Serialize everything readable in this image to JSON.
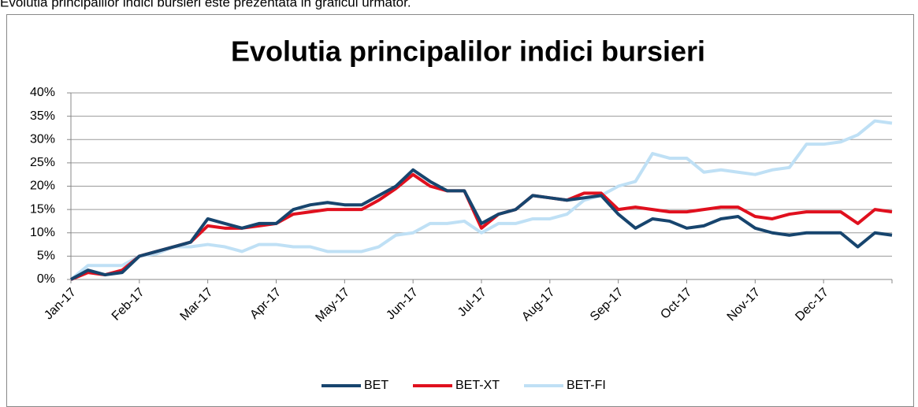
{
  "caption": "Evolutia principalilor indici bursieri este prezentata in graficul urmator.",
  "chart_data": {
    "type": "line",
    "title": "Evolutia principalilor indici bursieri",
    "categories": [
      "Jan-17",
      null,
      null,
      null,
      "Feb-17",
      null,
      null,
      null,
      "Mar-17",
      null,
      null,
      null,
      "Apr-17",
      null,
      null,
      null,
      "May-17",
      null,
      null,
      null,
      "Jun-17",
      null,
      null,
      null,
      "Jul-17",
      null,
      null,
      null,
      "Aug-17",
      null,
      null,
      null,
      "Sep-17",
      null,
      null,
      null,
      "Oct-17",
      null,
      null,
      null,
      "Nov-17",
      null,
      null,
      null,
      "Dec-17",
      null,
      null,
      null,
      null
    ],
    "series": [
      {
        "name": "BET",
        "color": "#17456e",
        "values": [
          0,
          2,
          1,
          1.5,
          5,
          6,
          7,
          8,
          13,
          12,
          11,
          12,
          12,
          15,
          16,
          16.5,
          16,
          16,
          18,
          20,
          23.5,
          21,
          19,
          19,
          12,
          14,
          15,
          18,
          17.5,
          17,
          17.5,
          18,
          14,
          11,
          13,
          12.5,
          11,
          11.5,
          13,
          13.5,
          11,
          10,
          9.5,
          10,
          10,
          10,
          7,
          10,
          9.5
        ]
      },
      {
        "name": "BET-XT",
        "color": "#e0101e",
        "values": [
          0,
          1.5,
          1,
          2,
          5,
          6,
          7,
          8,
          11.5,
          11,
          11,
          11.5,
          12,
          14,
          14.5,
          15,
          15,
          15,
          17,
          19.5,
          22.5,
          20,
          19,
          19,
          11,
          14,
          15,
          18,
          17.5,
          17,
          18.5,
          18.5,
          15,
          15.5,
          15,
          14.5,
          14.5,
          15,
          15.5,
          15.5,
          13.5,
          13,
          14,
          14.5,
          14.5,
          14.5,
          12,
          15,
          14.5
        ]
      },
      {
        "name": "BET-FI",
        "color": "#bfe0f5",
        "values": [
          0,
          3,
          3,
          3,
          5,
          5.5,
          7,
          7,
          7.5,
          7,
          6,
          7.5,
          7.5,
          7,
          7,
          6,
          6,
          6,
          7,
          9.5,
          10,
          12,
          12,
          12.5,
          10,
          12,
          12,
          13,
          13,
          14,
          17,
          18,
          20,
          21,
          27,
          26,
          26,
          23,
          23.5,
          23,
          22.5,
          23.5,
          24,
          29,
          29,
          29.5,
          31,
          34,
          33.5
        ]
      }
    ],
    "ylim": [
      0,
      40
    ],
    "yticks": [
      {
        "value": 0,
        "label": "0%"
      },
      {
        "value": 5,
        "label": "5%"
      },
      {
        "value": 10,
        "label": "10%"
      },
      {
        "value": 15,
        "label": "15%"
      },
      {
        "value": 20,
        "label": "20%"
      },
      {
        "value": 25,
        "label": "25%"
      },
      {
        "value": 30,
        "label": "30%"
      },
      {
        "value": 35,
        "label": "35%"
      },
      {
        "value": 40,
        "label": "40%"
      }
    ],
    "grid": true,
    "legend": "bottom"
  }
}
